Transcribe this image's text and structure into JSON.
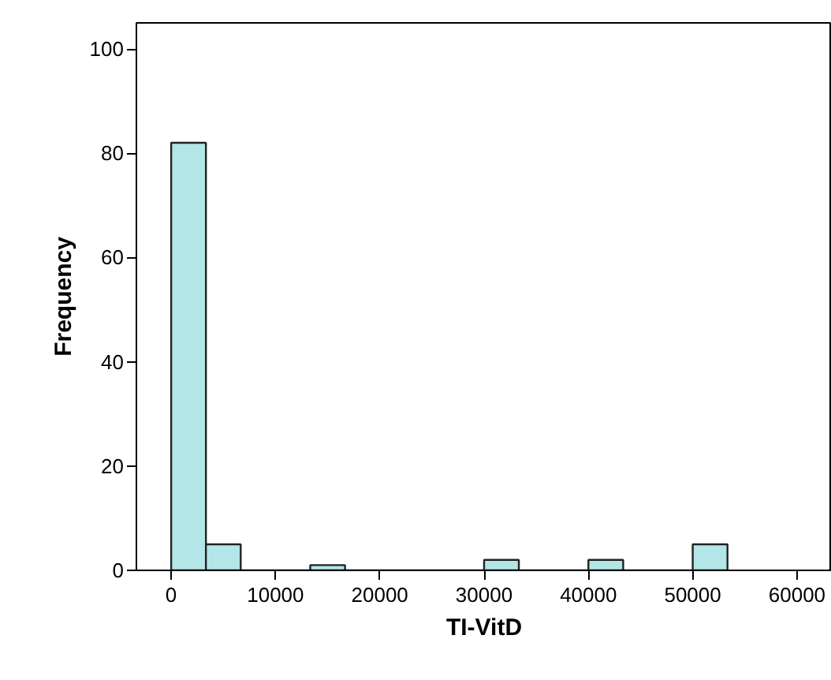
{
  "chart_data": {
    "type": "histogram",
    "xlabel": "TI-VitD",
    "ylabel": "Frequency",
    "bins": [
      0,
      3333,
      6667,
      10000,
      13333,
      16667,
      20000,
      23333,
      26667,
      30000,
      33333,
      36667,
      40000,
      43333,
      46667,
      50000,
      53333
    ],
    "values": [
      82,
      5,
      0,
      0,
      1,
      0,
      0,
      0,
      0,
      2,
      0,
      0,
      2,
      0,
      0,
      5
    ],
    "color": "#b3e6e6",
    "xlim": [
      -3333,
      63333
    ],
    "ylim": [
      0,
      105
    ],
    "xticks": [
      0,
      10000,
      20000,
      30000,
      40000,
      50000,
      60000
    ],
    "yticks": [
      0,
      20,
      40,
      60,
      80,
      100
    ],
    "grid": false
  }
}
